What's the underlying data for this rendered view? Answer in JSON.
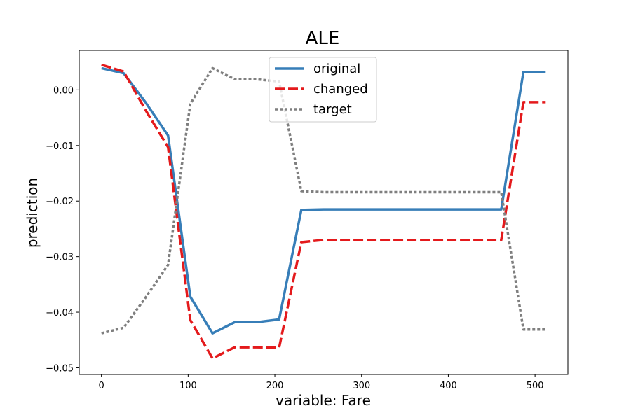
{
  "chart_data": {
    "type": "line",
    "title": "ALE",
    "xlabel": "variable: Fare",
    "ylabel": "prediction",
    "xlim": [
      -25.6,
      537.9
    ],
    "ylim": [
      -0.0512,
      0.0071
    ],
    "x_ticks": [
      0,
      100,
      200,
      300,
      400,
      500
    ],
    "y_ticks": [
      0.0,
      -0.01,
      -0.02,
      -0.03,
      -0.04,
      -0.05
    ],
    "y_tick_labels": [
      "0.00",
      "−0.01",
      "−0.02",
      "−0.03",
      "−0.04",
      "−0.05"
    ],
    "grid": false,
    "legend_position": "top-center",
    "x": [
      0,
      25.6,
      51.2,
      76.8,
      102.5,
      128.1,
      153.7,
      179.3,
      204.9,
      230.5,
      256.1,
      281.7,
      307.4,
      333.0,
      358.6,
      384.2,
      409.8,
      435.4,
      461.0,
      486.6,
      512.3
    ],
    "series": [
      {
        "name": "original",
        "color": "#377eb8",
        "dash": "solid",
        "values": [
          0.0039,
          0.003,
          -0.0023,
          -0.0082,
          -0.0372,
          -0.0438,
          -0.0418,
          -0.0418,
          -0.0413,
          -0.0216,
          -0.0215,
          -0.0215,
          -0.0215,
          -0.0215,
          -0.0215,
          -0.0215,
          -0.0215,
          -0.0215,
          -0.0215,
          0.0032,
          0.0032
        ]
      },
      {
        "name": "changed",
        "color": "#e41a1c",
        "dash": "dashed",
        "values": [
          0.0045,
          0.0033,
          -0.0037,
          -0.0103,
          -0.0414,
          -0.0483,
          -0.0463,
          -0.0463,
          -0.0464,
          -0.0274,
          -0.027,
          -0.027,
          -0.027,
          -0.027,
          -0.027,
          -0.027,
          -0.027,
          -0.027,
          -0.027,
          -0.0022,
          -0.0022
        ]
      },
      {
        "name": "target",
        "color": "#7f7f7f",
        "dash": "dotted",
        "values": [
          -0.0438,
          -0.0428,
          -0.0373,
          -0.0315,
          -0.0025,
          0.0039,
          0.0019,
          0.0019,
          0.0015,
          -0.0182,
          -0.0184,
          -0.0184,
          -0.0184,
          -0.0184,
          -0.0184,
          -0.0184,
          -0.0184,
          -0.0184,
          -0.0184,
          -0.0431,
          -0.0431
        ]
      }
    ]
  }
}
